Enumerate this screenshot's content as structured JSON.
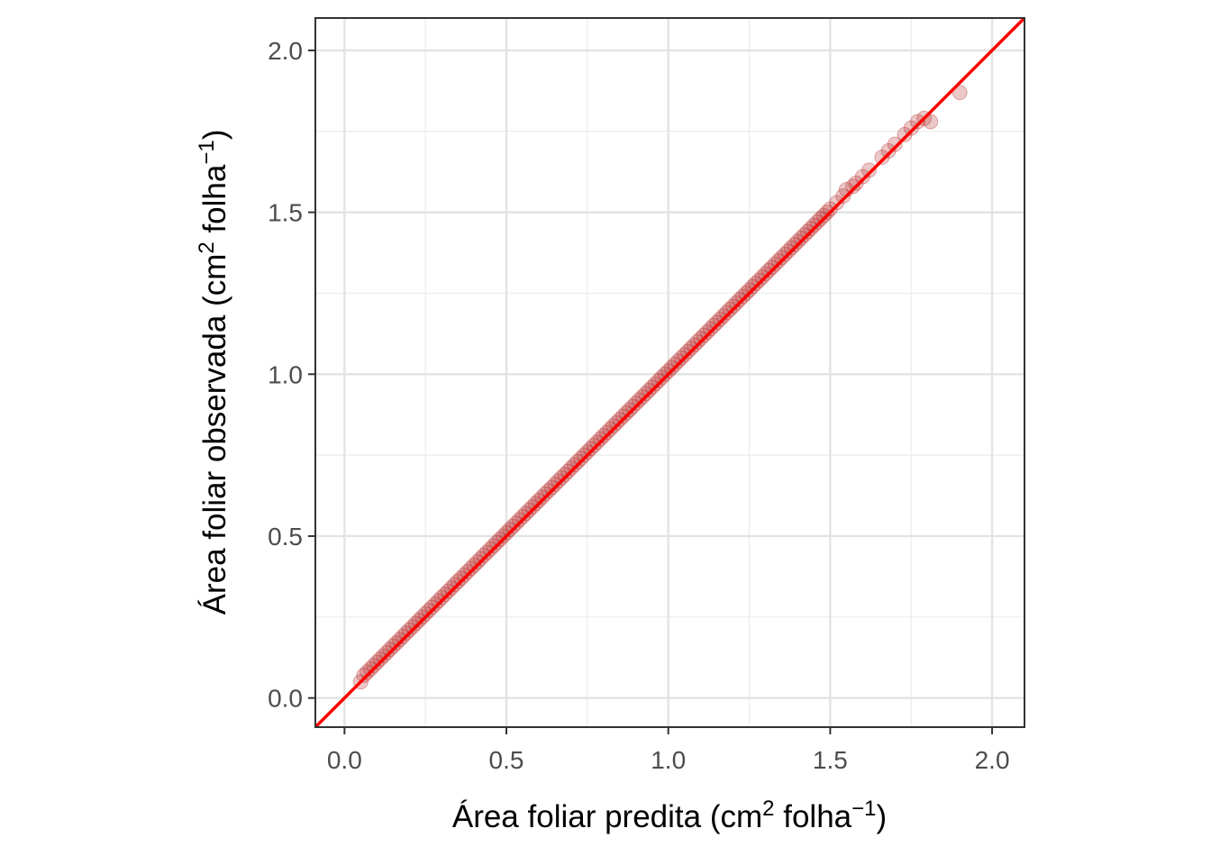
{
  "chart_data": {
    "type": "scatter",
    "title": "",
    "xlabel": {
      "main": "Área foliar predita (cm",
      "sup1": "2",
      "mid": " folha",
      "sup2": "−1",
      "end": ")"
    },
    "ylabel": {
      "main": "Área foliar observada (cm",
      "sup1": "2",
      "mid": " folha",
      "sup2": "−1",
      "end": ")"
    },
    "xlim": [
      -0.09,
      2.1
    ],
    "ylim": [
      -0.09,
      2.1
    ],
    "x_ticks": [
      0.0,
      0.5,
      1.0,
      1.5,
      2.0
    ],
    "y_ticks": [
      0.0,
      0.5,
      1.0,
      1.5,
      2.0
    ],
    "x_tick_labels": [
      "0.0",
      "0.5",
      "1.0",
      "1.5",
      "2.0"
    ],
    "y_tick_labels": [
      "0.0",
      "0.5",
      "1.0",
      "1.5",
      "2.0"
    ],
    "grid": true,
    "reference_line": {
      "slope": 1,
      "intercept": 0,
      "color": "#ff0000"
    },
    "point_color": "#b22222",
    "point_opacity": 0.25,
    "series": [
      {
        "points": [
          [
            0.05,
            0.05
          ],
          [
            0.06,
            0.07
          ],
          [
            0.07,
            0.08
          ],
          [
            0.08,
            0.09
          ],
          [
            0.09,
            0.1
          ],
          [
            0.1,
            0.11
          ],
          [
            0.11,
            0.12
          ],
          [
            0.12,
            0.13
          ],
          [
            0.13,
            0.14
          ],
          [
            0.14,
            0.15
          ],
          [
            0.15,
            0.16
          ],
          [
            0.16,
            0.17
          ],
          [
            0.17,
            0.18
          ],
          [
            0.18,
            0.19
          ],
          [
            0.19,
            0.2
          ],
          [
            0.2,
            0.21
          ],
          [
            0.21,
            0.22
          ],
          [
            0.22,
            0.23
          ],
          [
            0.23,
            0.24
          ],
          [
            0.24,
            0.25
          ],
          [
            0.25,
            0.26
          ],
          [
            0.26,
            0.27
          ],
          [
            0.27,
            0.28
          ],
          [
            0.28,
            0.29
          ],
          [
            0.29,
            0.3
          ],
          [
            0.3,
            0.31
          ],
          [
            0.31,
            0.32
          ],
          [
            0.32,
            0.33
          ],
          [
            0.33,
            0.34
          ],
          [
            0.34,
            0.35
          ],
          [
            0.35,
            0.36
          ],
          [
            0.36,
            0.37
          ],
          [
            0.37,
            0.38
          ],
          [
            0.38,
            0.39
          ],
          [
            0.39,
            0.4
          ],
          [
            0.4,
            0.41
          ],
          [
            0.41,
            0.42
          ],
          [
            0.42,
            0.43
          ],
          [
            0.43,
            0.44
          ],
          [
            0.44,
            0.45
          ],
          [
            0.45,
            0.46
          ],
          [
            0.46,
            0.47
          ],
          [
            0.47,
            0.48
          ],
          [
            0.48,
            0.49
          ],
          [
            0.49,
            0.5
          ],
          [
            0.5,
            0.51
          ],
          [
            0.51,
            0.52
          ],
          [
            0.52,
            0.53
          ],
          [
            0.53,
            0.54
          ],
          [
            0.54,
            0.55
          ],
          [
            0.55,
            0.56
          ],
          [
            0.56,
            0.57
          ],
          [
            0.57,
            0.58
          ],
          [
            0.58,
            0.59
          ],
          [
            0.59,
            0.6
          ],
          [
            0.6,
            0.61
          ],
          [
            0.61,
            0.62
          ],
          [
            0.62,
            0.63
          ],
          [
            0.63,
            0.64
          ],
          [
            0.64,
            0.65
          ],
          [
            0.65,
            0.66
          ],
          [
            0.66,
            0.67
          ],
          [
            0.67,
            0.68
          ],
          [
            0.68,
            0.69
          ],
          [
            0.69,
            0.7
          ],
          [
            0.7,
            0.71
          ],
          [
            0.71,
            0.72
          ],
          [
            0.72,
            0.73
          ],
          [
            0.73,
            0.74
          ],
          [
            0.74,
            0.75
          ],
          [
            0.75,
            0.76
          ],
          [
            0.76,
            0.77
          ],
          [
            0.77,
            0.78
          ],
          [
            0.78,
            0.79
          ],
          [
            0.79,
            0.8
          ],
          [
            0.8,
            0.81
          ],
          [
            0.81,
            0.82
          ],
          [
            0.82,
            0.83
          ],
          [
            0.83,
            0.84
          ],
          [
            0.84,
            0.85
          ],
          [
            0.85,
            0.86
          ],
          [
            0.86,
            0.87
          ],
          [
            0.87,
            0.88
          ],
          [
            0.88,
            0.89
          ],
          [
            0.89,
            0.9
          ],
          [
            0.9,
            0.91
          ],
          [
            0.91,
            0.92
          ],
          [
            0.92,
            0.93
          ],
          [
            0.93,
            0.94
          ],
          [
            0.94,
            0.95
          ],
          [
            0.95,
            0.96
          ],
          [
            0.96,
            0.97
          ],
          [
            0.97,
            0.98
          ],
          [
            0.98,
            0.99
          ],
          [
            0.99,
            1.0
          ],
          [
            1.0,
            1.01
          ],
          [
            1.01,
            1.02
          ],
          [
            1.02,
            1.03
          ],
          [
            1.03,
            1.04
          ],
          [
            1.04,
            1.05
          ],
          [
            1.05,
            1.06
          ],
          [
            1.06,
            1.07
          ],
          [
            1.07,
            1.08
          ],
          [
            1.08,
            1.09
          ],
          [
            1.09,
            1.1
          ],
          [
            1.1,
            1.11
          ],
          [
            1.11,
            1.12
          ],
          [
            1.12,
            1.13
          ],
          [
            1.13,
            1.14
          ],
          [
            1.14,
            1.15
          ],
          [
            1.15,
            1.16
          ],
          [
            1.16,
            1.17
          ],
          [
            1.17,
            1.18
          ],
          [
            1.18,
            1.19
          ],
          [
            1.19,
            1.2
          ],
          [
            1.2,
            1.21
          ],
          [
            1.21,
            1.22
          ],
          [
            1.22,
            1.23
          ],
          [
            1.23,
            1.24
          ],
          [
            1.24,
            1.25
          ],
          [
            1.25,
            1.26
          ],
          [
            1.26,
            1.27
          ],
          [
            1.27,
            1.28
          ],
          [
            1.28,
            1.29
          ],
          [
            1.29,
            1.3
          ],
          [
            1.3,
            1.31
          ],
          [
            1.31,
            1.32
          ],
          [
            1.32,
            1.33
          ],
          [
            1.33,
            1.34
          ],
          [
            1.34,
            1.35
          ],
          [
            1.35,
            1.36
          ],
          [
            1.36,
            1.37
          ],
          [
            1.37,
            1.38
          ],
          [
            1.38,
            1.39
          ],
          [
            1.39,
            1.4
          ],
          [
            1.4,
            1.41
          ],
          [
            1.41,
            1.42
          ],
          [
            1.42,
            1.43
          ],
          [
            1.43,
            1.44
          ],
          [
            1.44,
            1.45
          ],
          [
            1.45,
            1.46
          ],
          [
            1.46,
            1.47
          ],
          [
            1.47,
            1.48
          ],
          [
            1.48,
            1.49
          ],
          [
            1.49,
            1.5
          ],
          [
            1.5,
            1.51
          ],
          [
            1.52,
            1.53
          ],
          [
            1.54,
            1.55
          ],
          [
            1.55,
            1.57
          ],
          [
            1.57,
            1.58
          ],
          [
            1.58,
            1.59
          ],
          [
            1.6,
            1.61
          ],
          [
            1.62,
            1.63
          ],
          [
            1.66,
            1.67
          ],
          [
            1.68,
            1.69
          ],
          [
            1.7,
            1.71
          ],
          [
            1.73,
            1.74
          ],
          [
            1.75,
            1.76
          ],
          [
            1.77,
            1.78
          ],
          [
            1.79,
            1.79
          ],
          [
            1.81,
            1.78
          ],
          [
            1.9,
            1.87
          ]
        ]
      }
    ]
  }
}
